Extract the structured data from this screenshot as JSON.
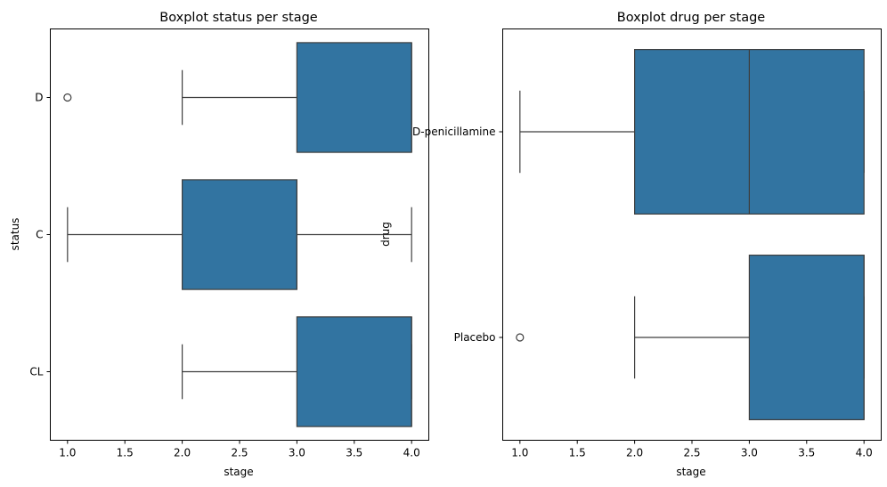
{
  "chart_data": [
    {
      "type": "boxplot",
      "orientation": "horizontal",
      "title": "Boxplot status per stage",
      "xlabel": "stage",
      "ylabel": "status",
      "xlim": [
        0.85,
        4.15
      ],
      "xticks": [
        1.0,
        1.5,
        2.0,
        2.5,
        3.0,
        3.5,
        4.0
      ],
      "xtick_labels": [
        "1.0",
        "1.5",
        "2.0",
        "2.5",
        "3.0",
        "3.5",
        "4.0"
      ],
      "categories": [
        "D",
        "C",
        "CL"
      ],
      "color": "#3274a1",
      "boxes": [
        {
          "category": "D",
          "whisker_low": 2.0,
          "q1": 3.0,
          "median": 4.0,
          "q3": 4.0,
          "whisker_high": 4.0,
          "outliers": [
            1.0
          ]
        },
        {
          "category": "C",
          "whisker_low": 1.0,
          "q1": 2.0,
          "median": 3.0,
          "q3": 3.0,
          "whisker_high": 4.0,
          "outliers": []
        },
        {
          "category": "CL",
          "whisker_low": 2.0,
          "q1": 3.0,
          "median": 4.0,
          "q3": 4.0,
          "whisker_high": 4.0,
          "outliers": []
        }
      ]
    },
    {
      "type": "boxplot",
      "orientation": "horizontal",
      "title": "Boxplot drug per stage",
      "xlabel": "stage",
      "ylabel": "drug",
      "xlim": [
        0.85,
        4.15
      ],
      "xticks": [
        1.0,
        1.5,
        2.0,
        2.5,
        3.0,
        3.5,
        4.0
      ],
      "xtick_labels": [
        "1.0",
        "1.5",
        "2.0",
        "2.5",
        "3.0",
        "3.5",
        "4.0"
      ],
      "categories": [
        "D-penicillamine",
        "Placebo"
      ],
      "color": "#3274a1",
      "boxes": [
        {
          "category": "D-penicillamine",
          "whisker_low": 1.0,
          "q1": 2.0,
          "median": 3.0,
          "q3": 4.0,
          "whisker_high": 4.0,
          "outliers": []
        },
        {
          "category": "Placebo",
          "whisker_low": 2.0,
          "q1": 3.0,
          "median": 4.0,
          "q3": 4.0,
          "whisker_high": 4.0,
          "outliers": [
            1.0
          ]
        }
      ]
    }
  ]
}
